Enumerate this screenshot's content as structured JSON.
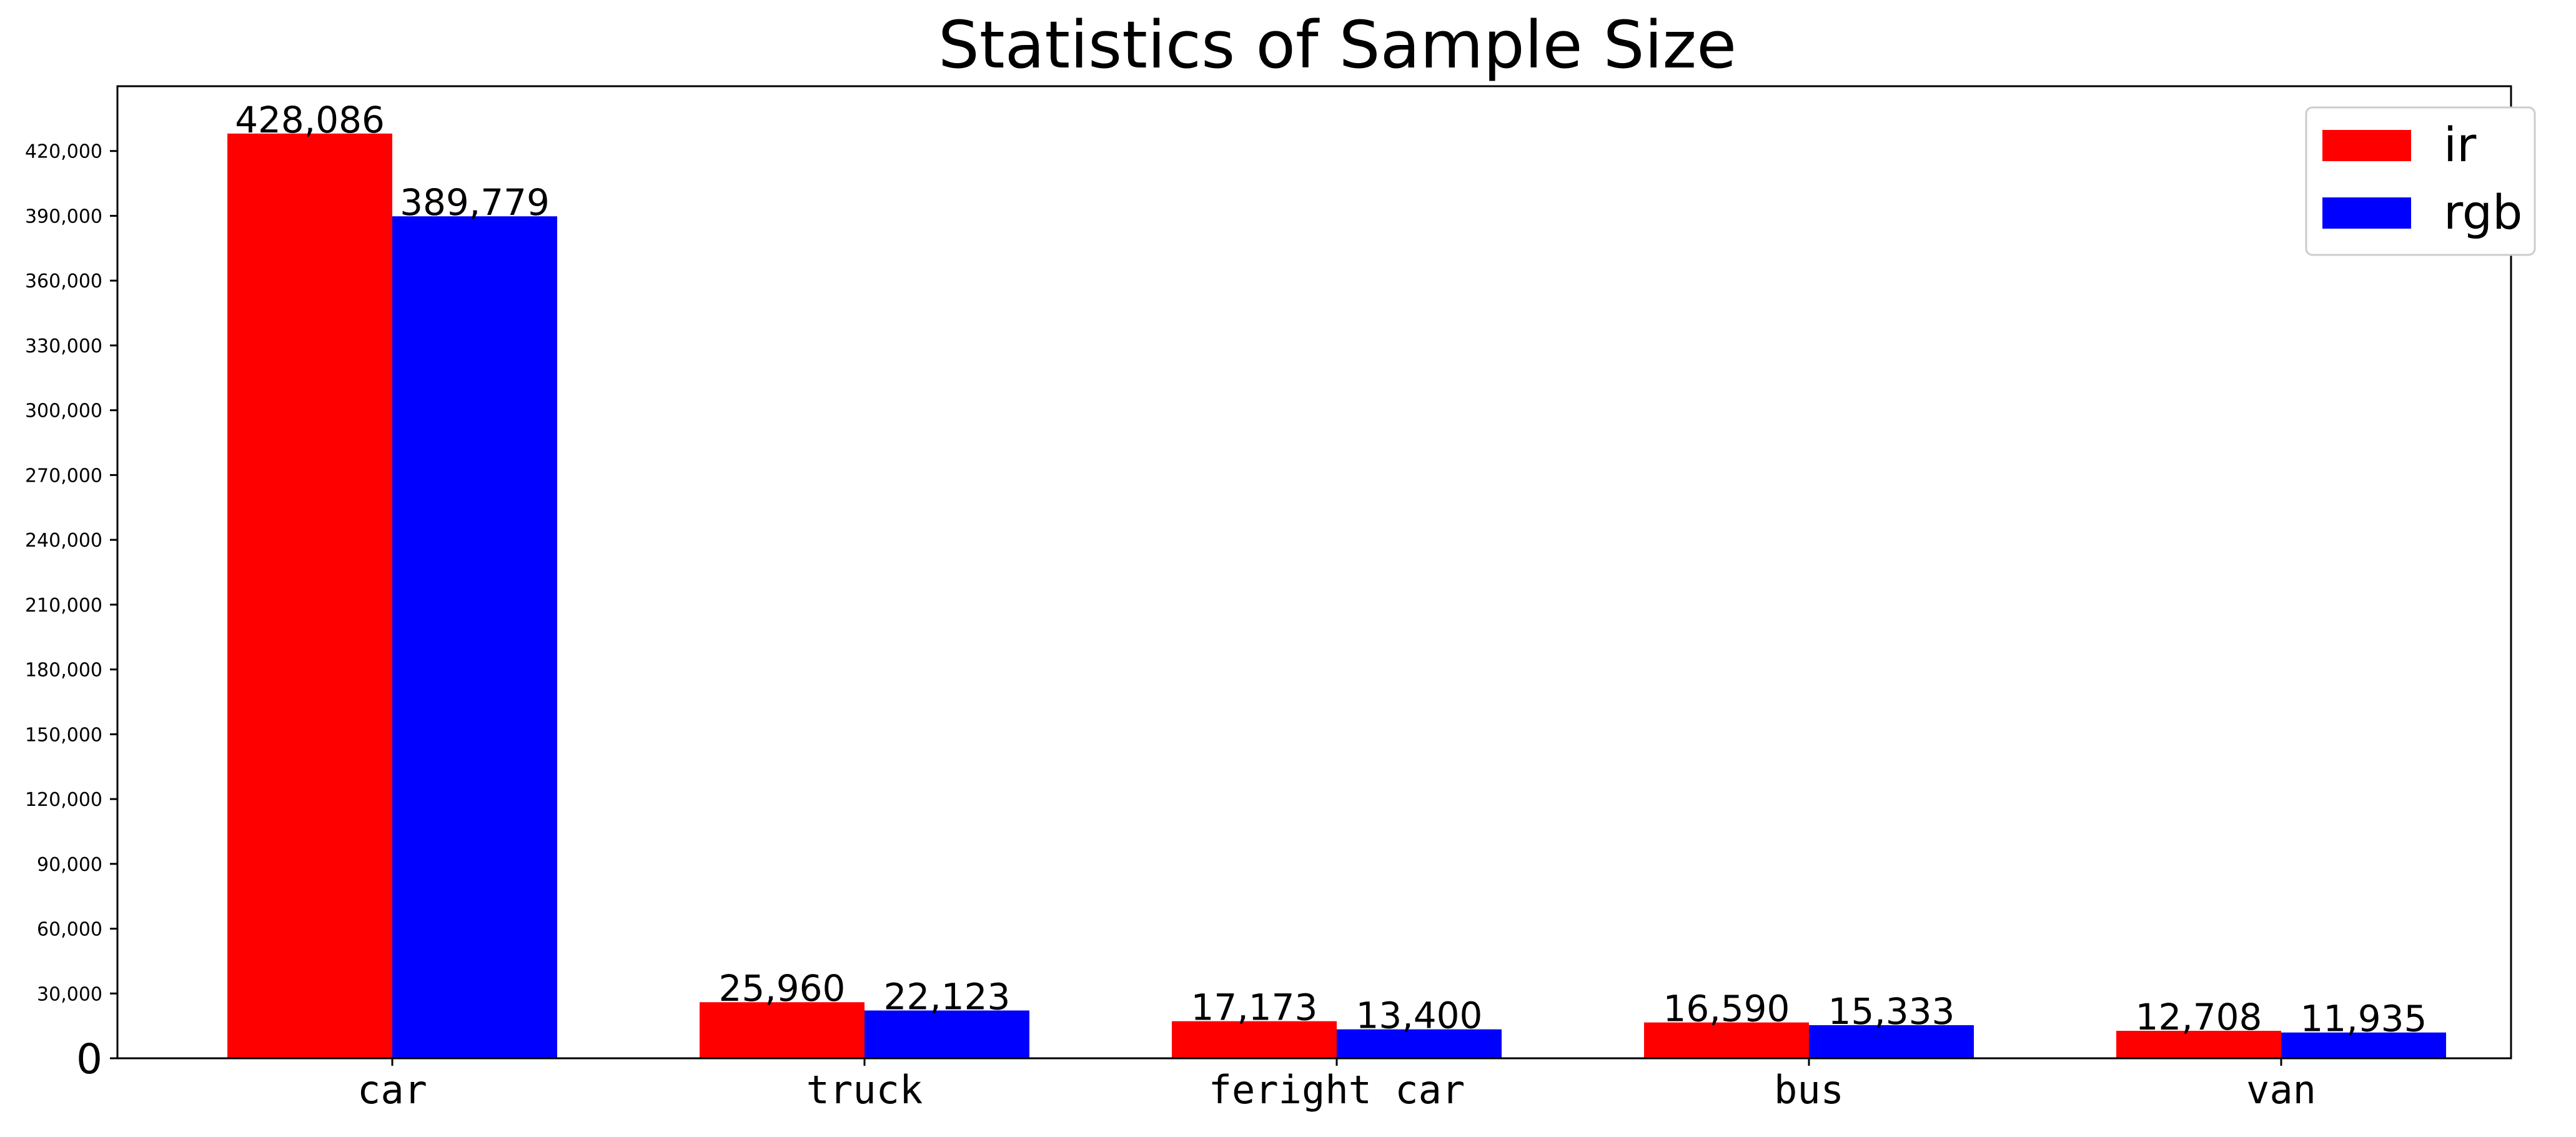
{
  "chart_data": {
    "type": "bar",
    "title": "Statistics of Sample Size",
    "xlabel": "",
    "ylabel": "",
    "categories": [
      "car",
      "truck",
      "feright car",
      "bus",
      "van"
    ],
    "series": [
      {
        "name": "ir",
        "color": "#ff0000",
        "values": [
          428086,
          25960,
          17173,
          16590,
          12708
        ],
        "labels": [
          "428,086",
          "25,960",
          "17,173",
          "16,590",
          "12,708"
        ]
      },
      {
        "name": "rgb",
        "color": "#0000ff",
        "values": [
          389779,
          22123,
          13400,
          15333,
          11935
        ],
        "labels": [
          "389,779",
          "22,123",
          "13,400",
          "15,333",
          "11,935"
        ]
      }
    ],
    "ylim": [
      0,
      450000
    ],
    "yticks": [
      0,
      30000,
      60000,
      90000,
      120000,
      150000,
      180000,
      210000,
      240000,
      270000,
      300000,
      330000,
      360000,
      390000,
      420000
    ],
    "ytick_labels": [
      "0",
      "30,000",
      "60,000",
      "90,000",
      "120,000",
      "150,000",
      "180,000",
      "210,000",
      "240,000",
      "270,000",
      "300,000",
      "330,000",
      "360,000",
      "390,000",
      "420,000"
    ],
    "grid": false,
    "legend_position": "top-right"
  }
}
